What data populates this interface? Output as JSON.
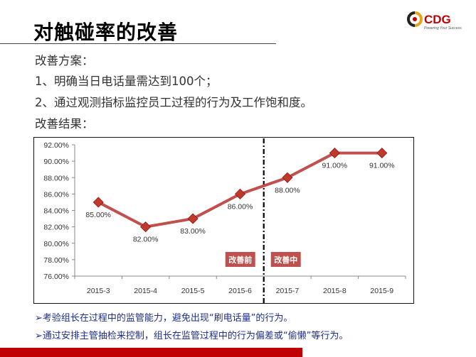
{
  "header": {
    "title": "对触碰率的改善"
  },
  "logo": {
    "text": "CDG",
    "tagline": "Powering Your Success"
  },
  "content": {
    "plan_heading": "改善方案：",
    "plan_items": [
      "1、明确当日电话量需达到100个；",
      "2、通过观测指标监控员工过程的行为及工作饱和度。"
    ],
    "result_heading": "改善结果："
  },
  "chart_data": {
    "type": "line",
    "categories": [
      "2015-3",
      "2015-4",
      "2015-5",
      "2015-6",
      "2015-7",
      "2015-8",
      "2015-9"
    ],
    "series": [
      {
        "values": [
          85,
          82,
          83,
          86,
          88,
          91,
          91
        ]
      }
    ],
    "data_labels": [
      "85.00%",
      "82.00%",
      "83.00%",
      "86.00%",
      "88.00%",
      "91.00%",
      "91.00%"
    ],
    "ylim": [
      76,
      92
    ],
    "yticks": [
      "76.00%",
      "78.00%",
      "80.00%",
      "82.00%",
      "84.00%",
      "86.00%",
      "88.00%",
      "90.00%",
      "92.00%"
    ],
    "grid": false,
    "divider_after_category": "2015-6",
    "annotations": [
      {
        "text": "改善前"
      },
      {
        "text": "改善中"
      }
    ],
    "colors": {
      "line": "#c0504d",
      "marker": "#c0392b",
      "annotation_bg": "#c0504d"
    }
  },
  "notes": [
    "➢考验组长在过程中的监管能力，避免出现“刷电话量”的行为。",
    "➢通过安排主管抽检来控制，组长在监管过程中的行为偏差或“偷懒”等行为。"
  ]
}
